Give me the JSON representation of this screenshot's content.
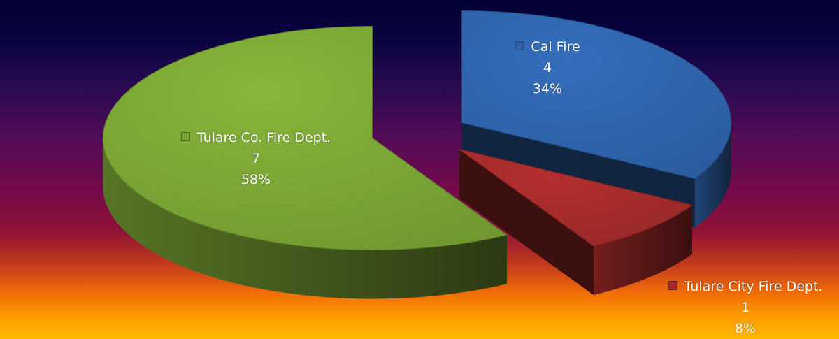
{
  "chart_data": {
    "type": "pie",
    "title": "",
    "legend": "none",
    "style": "3d-exploded",
    "slices": [
      {
        "name": "Cal Fire",
        "value": 4,
        "percent_label": "34%",
        "color": "#2e62a8"
      },
      {
        "name": "Tulare City Fire Dept.",
        "value": 1,
        "percent_label": "8%",
        "color": "#a12a2a"
      },
      {
        "name": "Tulare Co. Fire Dept.",
        "value": 7,
        "percent_label": "58%",
        "color": "#79a234"
      }
    ]
  }
}
